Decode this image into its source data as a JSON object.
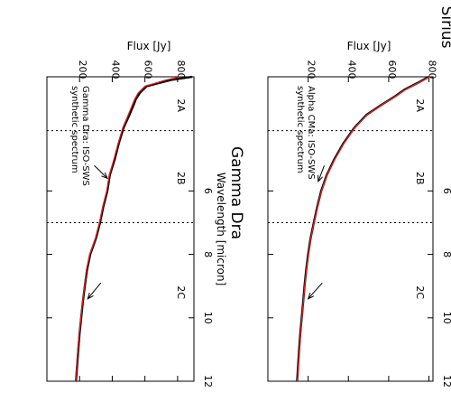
{
  "chart_data": [
    {
      "type": "line",
      "title": "Sirius",
      "xlabel": "Wavelength [micron]",
      "ylabel": "Flux [Jy]",
      "xlim": [
        2.4,
        12
      ],
      "ylim": [
        0,
        820
      ],
      "x_ticks": [
        6,
        8,
        10,
        12
      ],
      "y_ticks": [
        200,
        400,
        600,
        800
      ],
      "band_dividers": [
        4.1,
        7.0
      ],
      "band_labels": [
        {
          "label": "2A",
          "x": 3.3
        },
        {
          "label": "2B",
          "x": 5.6
        },
        {
          "label": "2C",
          "x": 9.2
        }
      ],
      "legend": [
        "Alpha CMa: ISO-SWS",
        "synthetic spectrum"
      ],
      "series": [
        {
          "name": "Alpha CMa: ISO-SWS",
          "color": "#000000",
          "x": [
            2.4,
            2.6,
            2.8,
            3.0,
            3.3,
            3.6,
            4.0,
            4.5,
            5.0,
            5.5,
            6.0,
            6.5,
            7.0,
            7.5,
            8.0,
            8.5,
            9.0,
            9.5,
            10.0,
            10.5,
            11.0,
            11.5,
            12.0
          ],
          "y": [
            800,
            742,
            680,
            635,
            560,
            490,
            430,
            375,
            330,
            292,
            265,
            245,
            228,
            212,
            200,
            190,
            182,
            175,
            168,
            161,
            155,
            150,
            145
          ]
        },
        {
          "name": "synthetic spectrum",
          "color": "#e02020",
          "x": [
            2.4,
            2.6,
            2.8,
            3.0,
            3.3,
            3.6,
            4.0,
            4.5,
            5.0,
            5.5,
            6.0,
            6.5,
            7.0,
            7.5,
            8.0,
            8.5,
            9.0,
            9.5,
            10.0,
            10.5,
            11.0,
            11.5,
            12.0
          ],
          "y": [
            805,
            745,
            683,
            637,
            562,
            492,
            432,
            377,
            332,
            293,
            266,
            246,
            229,
            213,
            201,
            191,
            183,
            176,
            169,
            162,
            156,
            151,
            146
          ]
        }
      ],
      "arrows": [
        {
          "x": 5.2,
          "y": 280,
          "to_x": 5.7,
          "to_y": 250
        },
        {
          "x": 8.9,
          "y": 270,
          "to_x": 9.4,
          "to_y": 200
        }
      ]
    },
    {
      "type": "line",
      "title": "Gamma Dra",
      "xlabel": "Wavelength [micron]",
      "ylabel": "Flux [Jy]",
      "xlim": [
        2.4,
        12
      ],
      "ylim": [
        0,
        900
      ],
      "x_ticks": [
        6,
        8,
        10,
        12
      ],
      "y_ticks": [
        200,
        400,
        600,
        800
      ],
      "band_dividers": [
        4.1,
        7.0
      ],
      "band_labels": [
        {
          "label": "2A",
          "x": 3.3
        },
        {
          "label": "2B",
          "x": 5.6
        },
        {
          "label": "2C",
          "x": 9.2
        }
      ],
      "legend": [
        "Gamma Dra: ISO-SWS",
        "synthetic spectrum"
      ],
      "series": [
        {
          "name": "Gamma Dra: ISO-SWS",
          "color": "#000000",
          "x": [
            2.4,
            2.5,
            2.7,
            2.9,
            3.1,
            3.3,
            3.6,
            4.0,
            4.5,
            5.0,
            5.5,
            6.0,
            6.5,
            7.0,
            7.5,
            8.0,
            8.5,
            9.0,
            9.5,
            10.0,
            10.5,
            11.0,
            11.5,
            12.0
          ],
          "y": [
            890,
            760,
            610,
            570,
            545,
            530,
            505,
            470,
            440,
            415,
            385,
            370,
            345,
            325,
            300,
            265,
            245,
            232,
            220,
            210,
            200,
            192,
            185,
            178
          ]
        },
        {
          "name": "synthetic spectrum",
          "color": "#e02020",
          "x": [
            2.4,
            2.5,
            2.7,
            2.9,
            3.1,
            3.3,
            3.6,
            4.0,
            4.5,
            5.0,
            5.5,
            6.0,
            6.5,
            7.0,
            7.5,
            8.0,
            8.5,
            9.0,
            9.5,
            10.0,
            10.5,
            11.0,
            11.5,
            12.0
          ],
          "y": [
            820,
            730,
            600,
            560,
            538,
            522,
            498,
            465,
            436,
            410,
            382,
            366,
            342,
            322,
            297,
            262,
            242,
            230,
            218,
            208,
            198,
            190,
            183,
            176
          ]
        }
      ],
      "arrows": [
        {
          "x": 5.2,
          "y": 290,
          "to_x": 5.6,
          "to_y": 370
        },
        {
          "x": 8.9,
          "y": 330,
          "to_x": 9.4,
          "to_y": 250
        }
      ]
    }
  ]
}
